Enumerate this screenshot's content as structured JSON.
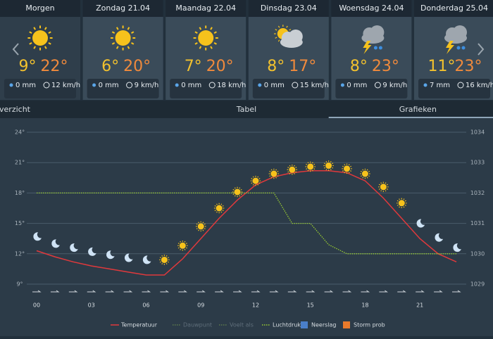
{
  "days": [
    {
      "name": "Morgen",
      "icon": "sun",
      "min": "9°",
      "max": "22°",
      "rain": "0 mm",
      "wind": "12 km/h"
    },
    {
      "name": "Zondag 21.04",
      "icon": "sun",
      "min": "6°",
      "max": "20°",
      "rain": "0 mm",
      "wind": "9 km/h"
    },
    {
      "name": "Maandag 22.04",
      "icon": "sun",
      "min": "7°",
      "max": "20°",
      "rain": "0 mm",
      "wind": "18 km/h"
    },
    {
      "name": "Dinsdag 23.04",
      "icon": "partly-cloudy",
      "min": "8°",
      "max": "17°",
      "rain": "0 mm",
      "wind": "15 km/h"
    },
    {
      "name": "Woensdag 24.04",
      "icon": "thunder",
      "min": "8°",
      "max": "23°",
      "rain": "0 mm",
      "wind": "9 km/h"
    },
    {
      "name": "Donderdag 25.04",
      "icon": "thunder",
      "min": "11°",
      "max": "23°",
      "rain": "7 mm",
      "wind": "16 km/h"
    }
  ],
  "tabs": [
    "Overzicht",
    "Tabel",
    "Grafieken"
  ],
  "active_tab": 2,
  "chart_data": {
    "type": "line",
    "x": [
      0,
      1,
      2,
      3,
      4,
      5,
      6,
      7,
      8,
      9,
      10,
      11,
      12,
      13,
      14,
      15,
      16,
      17,
      18,
      19,
      20,
      21,
      22,
      23
    ],
    "xlim": [
      0,
      23
    ],
    "xticks": [
      {
        "value": 0,
        "label": "00"
      },
      {
        "value": 3,
        "label": "03"
      },
      {
        "value": 6,
        "label": "06"
      },
      {
        "value": 9,
        "label": "09"
      },
      {
        "value": 12,
        "label": "12"
      },
      {
        "value": 15,
        "label": "15"
      },
      {
        "value": 18,
        "label": "18"
      },
      {
        "value": 21,
        "label": "21"
      }
    ],
    "ylim": [
      9,
      24
    ],
    "yticks": [
      {
        "value": 9,
        "label": "9°"
      },
      {
        "value": 12,
        "label": "12°"
      },
      {
        "value": 15,
        "label": "15°"
      },
      {
        "value": 18,
        "label": "18°"
      },
      {
        "value": 21,
        "label": "21°"
      },
      {
        "value": 24,
        "label": "24°"
      }
    ],
    "y2lim": [
      1029,
      1034
    ],
    "y2ticks": [
      1029,
      1030,
      1031,
      1032,
      1033,
      1034
    ],
    "grid": true,
    "series": [
      {
        "name": "Temperatuur",
        "color": "#e0393c",
        "visible": true,
        "style": "line",
        "values": [
          12.3,
          11.7,
          11.2,
          10.8,
          10.5,
          10.2,
          9.9,
          9.9,
          11.5,
          13.5,
          15.5,
          17.3,
          18.8,
          19.6,
          20.0,
          20.2,
          20.2,
          20.0,
          19.2,
          17.5,
          15.5,
          13.5,
          12.0,
          11.2
        ]
      },
      {
        "name": "Dauwpunt",
        "color": "#5c7a4c",
        "visible": false,
        "style": "dotted"
      },
      {
        "name": "Voelt als",
        "color": "#5c7a4c",
        "visible": false,
        "style": "dotted"
      },
      {
        "name": "Luchtdruk",
        "color": "#9acd32",
        "visible": true,
        "style": "dotted",
        "axis": "y2",
        "values": [
          1032,
          1032,
          1032,
          1032,
          1032,
          1032,
          1032,
          1032,
          1032,
          1032,
          1032,
          1032,
          1032,
          1032,
          1031,
          1031,
          1030.3,
          1030,
          1030,
          1030,
          1030,
          1030,
          1030,
          1030
        ]
      },
      {
        "name": "Neerslag",
        "color": "#4a7fc9",
        "visible": true,
        "style": "box"
      },
      {
        "name": "Storm prob",
        "color": "#e87a2b",
        "visible": true,
        "style": "box"
      }
    ],
    "symbols": {
      "kinds": [
        "moon",
        "moon",
        "moon",
        "moon",
        "moon",
        "moon",
        "moon",
        "sun",
        "sun",
        "sun",
        "sun",
        "sun",
        "sun",
        "sun",
        "sun",
        "sun",
        "sun",
        "sun",
        "sun",
        "sun",
        "sun",
        "moon",
        "moon",
        "moon"
      ],
      "values": [
        13.7,
        13.0,
        12.6,
        12.2,
        11.9,
        11.6,
        11.4,
        11.4,
        12.8,
        14.7,
        16.5,
        18.1,
        19.2,
        19.9,
        20.3,
        20.6,
        20.7,
        20.4,
        19.9,
        18.6,
        17.0,
        15.0,
        13.6,
        12.6
      ]
    }
  }
}
